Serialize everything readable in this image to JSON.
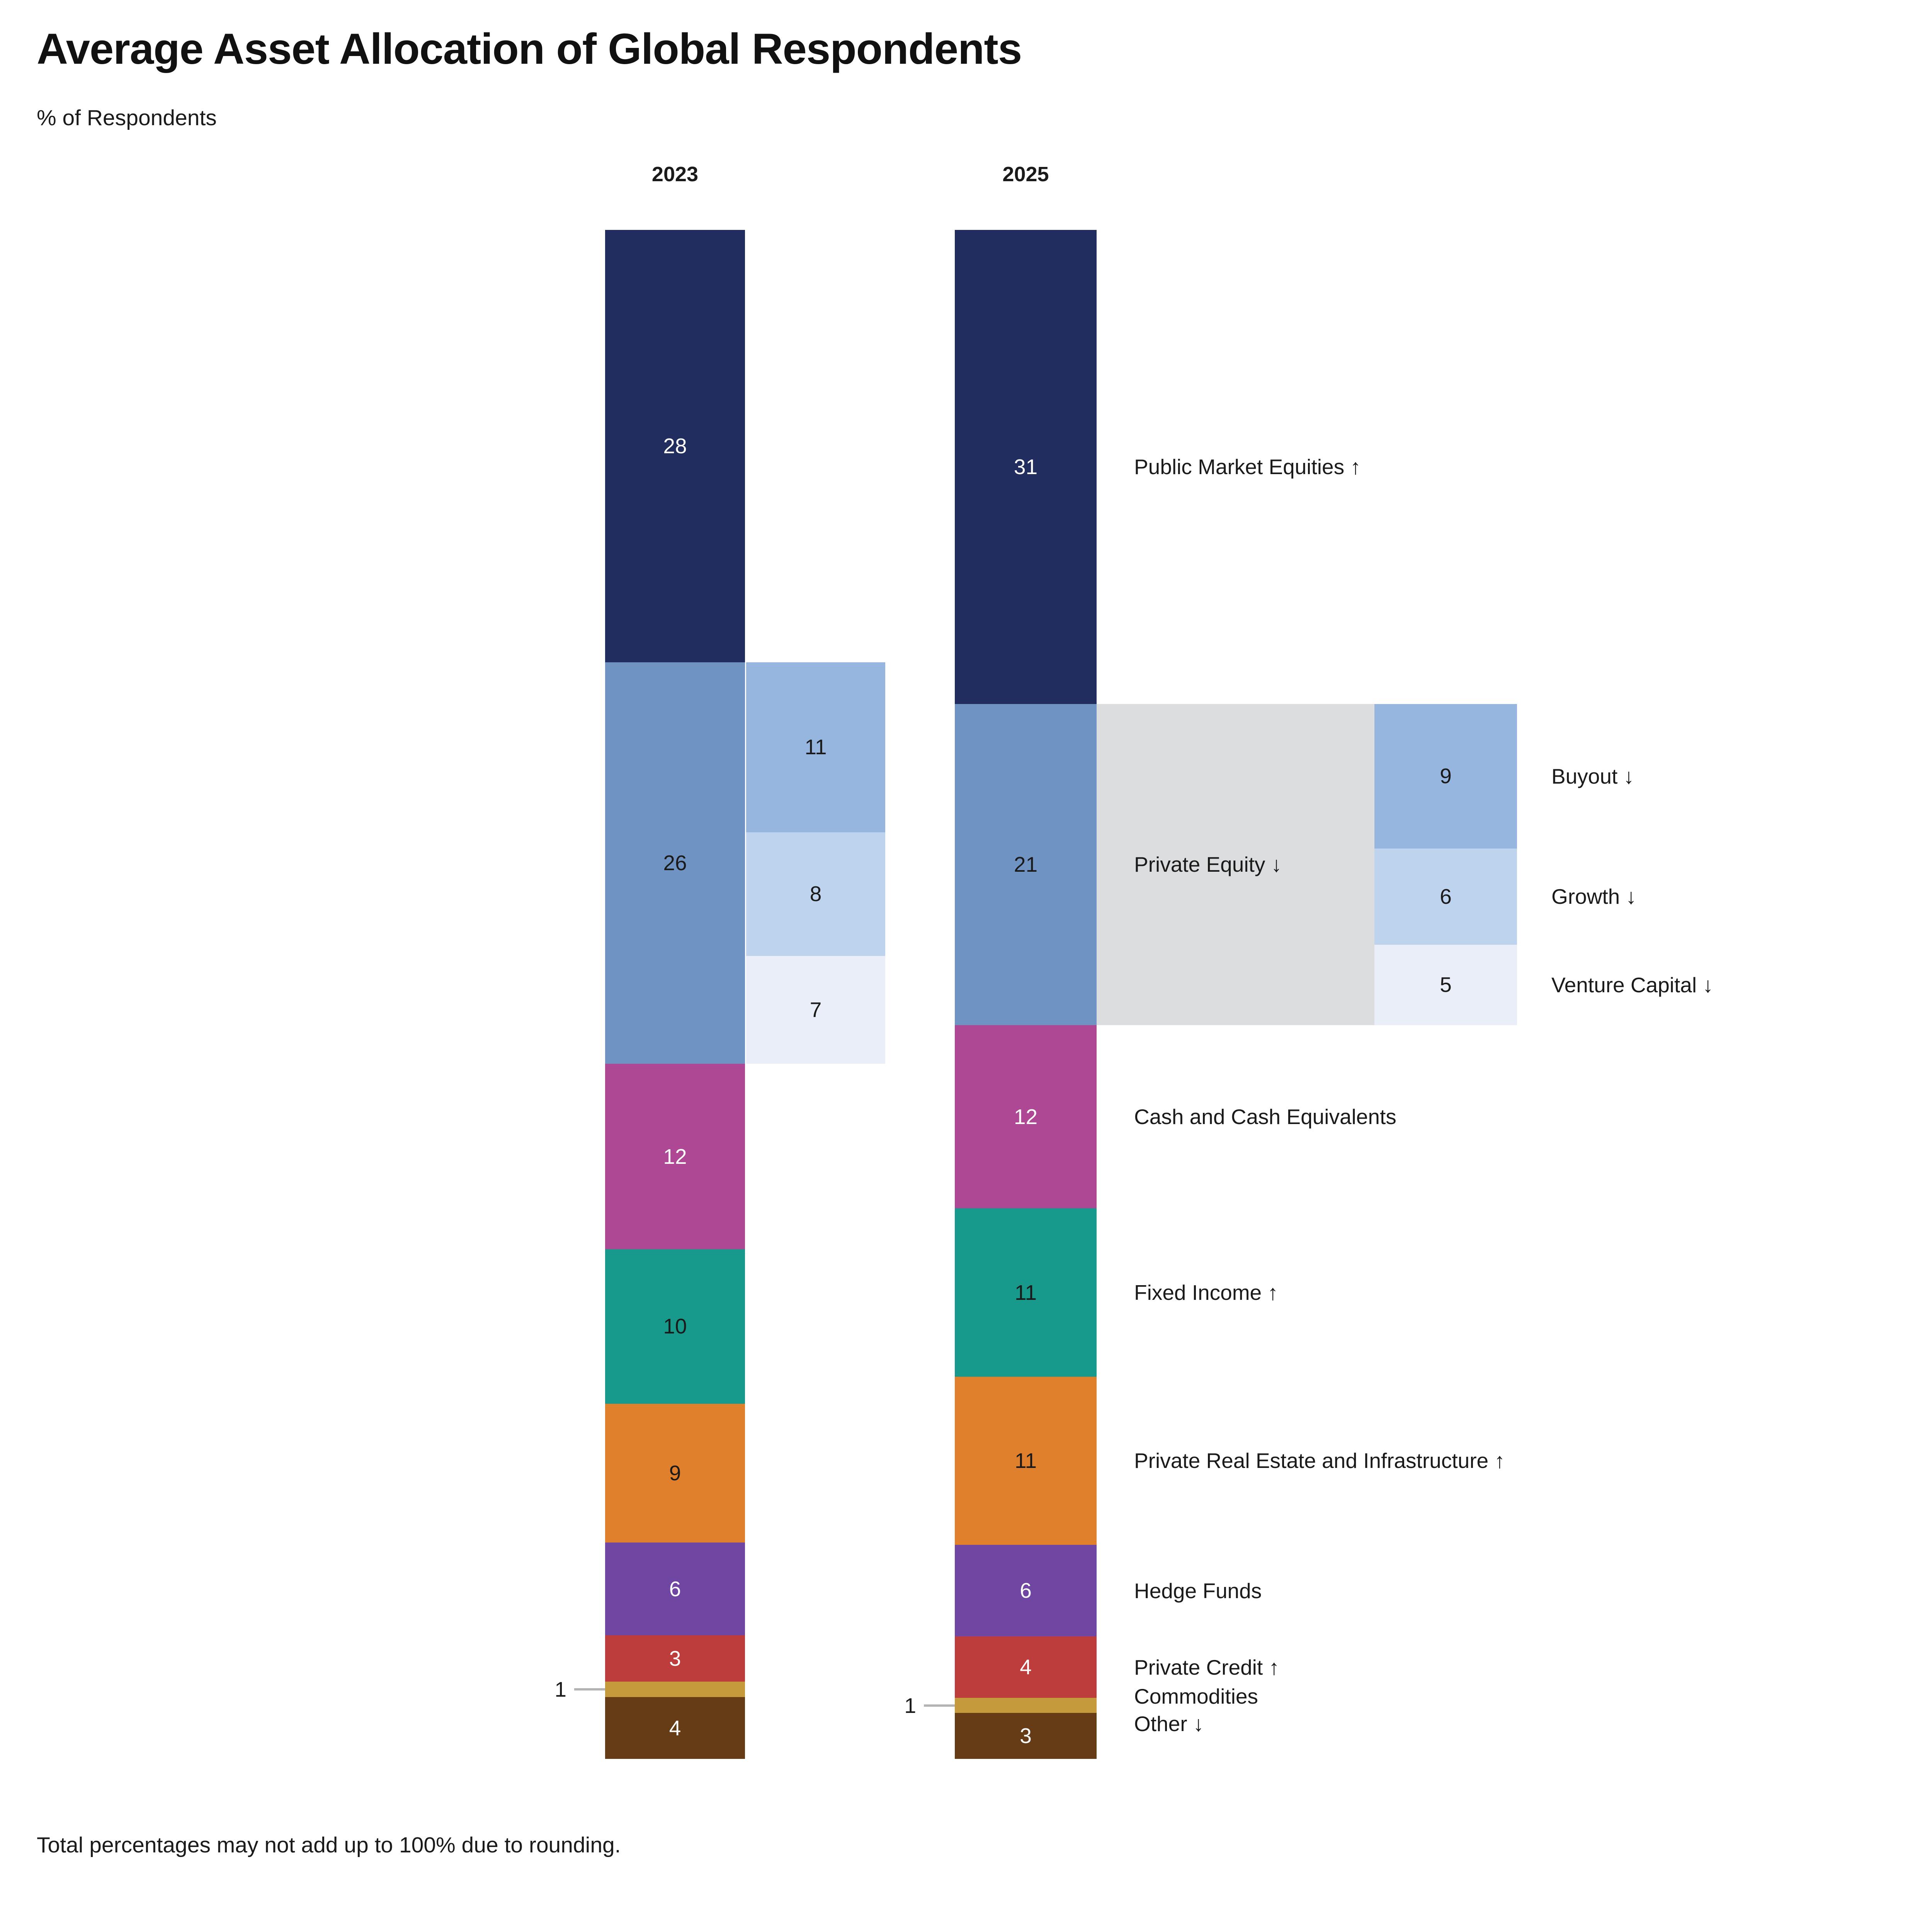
{
  "chart_data": {
    "type": "bar",
    "variant": "stacked-vertical-comparison",
    "title": "Average Asset Allocation of Global Respondents",
    "subtitle": "% of Respondents",
    "footnote": "Total percentages may not add up to 100% due to rounding.",
    "years": [
      "2023",
      "2025"
    ],
    "value_axis": "percent of portfolio allocation, columns total ~100",
    "legend_position": "labels right of 2025 column",
    "colors": {
      "leader_line": "#b3b3b3",
      "private_equity_box": "#dcddde"
    },
    "segments": [
      {
        "label": "Public Market Equities",
        "arrow": "↑",
        "values": {
          "2023": 28,
          "2025": 31
        },
        "color": "#212d5e",
        "value_text_color": "#ffffff"
      },
      {
        "label": "Private Equity",
        "arrow": "↓",
        "values": {
          "2023": 26,
          "2025": 21
        },
        "color": "#6f93c3",
        "value_text_color": "#1a1a1a",
        "breakdown": [
          {
            "label": "Buyout",
            "arrow": "↓",
            "values": {
              "2023": 11,
              "2025": 9
            },
            "color": "#97b6df",
            "value_text_color": "#1a1a1a"
          },
          {
            "label": "Growth",
            "arrow": "↓",
            "values": {
              "2023": 8,
              "2025": 6
            },
            "color": "#bed3ed",
            "value_text_color": "#1a1a1a"
          },
          {
            "label": "Venture Capital",
            "arrow": "↓",
            "values": {
              "2023": 7,
              "2025": 5
            },
            "color": "#e9eef8",
            "value_text_color": "#1a1a1a"
          }
        ]
      },
      {
        "label": "Cash and Cash Equivalents",
        "arrow": "",
        "values": {
          "2023": 12,
          "2025": 12
        },
        "color": "#ae4794",
        "value_text_color": "#ffffff"
      },
      {
        "label": "Fixed Income",
        "arrow": "↑",
        "values": {
          "2023": 10,
          "2025": 11
        },
        "color": "#17998b",
        "value_text_color": "#1a1a1a"
      },
      {
        "label": "Private Real Estate and Infrastructure",
        "arrow": "↑",
        "values": {
          "2023": 9,
          "2025": 11
        },
        "color": "#e1802c",
        "value_text_color": "#1a1a1a"
      },
      {
        "label": "Hedge Funds",
        "arrow": "",
        "values": {
          "2023": 6,
          "2025": 6
        },
        "color": "#6f46a2",
        "value_text_color": "#ffffff"
      },
      {
        "label": "Private Credit",
        "arrow": "↑",
        "values": {
          "2023": 3,
          "2025": 4
        },
        "color": "#bd3c3c",
        "value_text_color": "#ffffff"
      },
      {
        "label": "Commodities",
        "arrow": "",
        "values": {
          "2023": 1,
          "2025": 1
        },
        "color": "#c59a3d",
        "value_text_color": "#1a1a1a",
        "callout": true,
        "hide_value_in_bar": true
      },
      {
        "label": "Other",
        "arrow": "↓",
        "values": {
          "2023": 4,
          "2025": 3
        },
        "color": "#663c17",
        "value_text_color": "#ffffff"
      }
    ],
    "private_equity_box_label": "Private Equity",
    "private_equity_box_arrow": "↓"
  }
}
